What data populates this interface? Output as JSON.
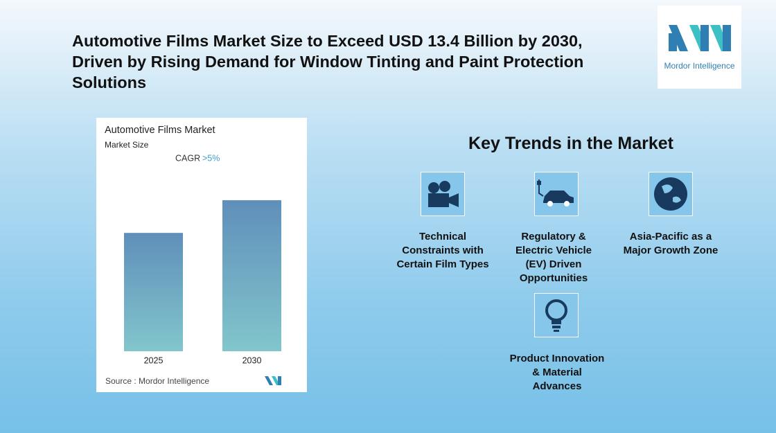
{
  "header": {
    "title": "Automotive Films Market Size to Exceed USD 13.4 Billion by 2030, Driven by Rising Demand for Window Tinting and Paint Protection Solutions"
  },
  "logo": {
    "text": "Mordor Intelligence"
  },
  "chart_data": {
    "type": "bar",
    "title": "Automotive Films Market",
    "subtitle": "Market Size",
    "annotation": "CAGR",
    "annotation_value": ">5%",
    "categories": [
      "2025",
      "2030"
    ],
    "values": [
      10.5,
      13.4
    ],
    "ylim": [
      0,
      14.2
    ],
    "source": "Source :  Mordor Intelligence"
  },
  "trends": {
    "title": "Key Trends in the Market",
    "items": [
      {
        "label": "Technical Constraints with Certain Film Types"
      },
      {
        "label": "Regulatory & Electric Vehicle (EV) Driven Opportunities"
      },
      {
        "label": "Asia-Pacific as a Major Growth Zone"
      },
      {
        "label": "Product Innovation & Material Advances"
      }
    ]
  }
}
